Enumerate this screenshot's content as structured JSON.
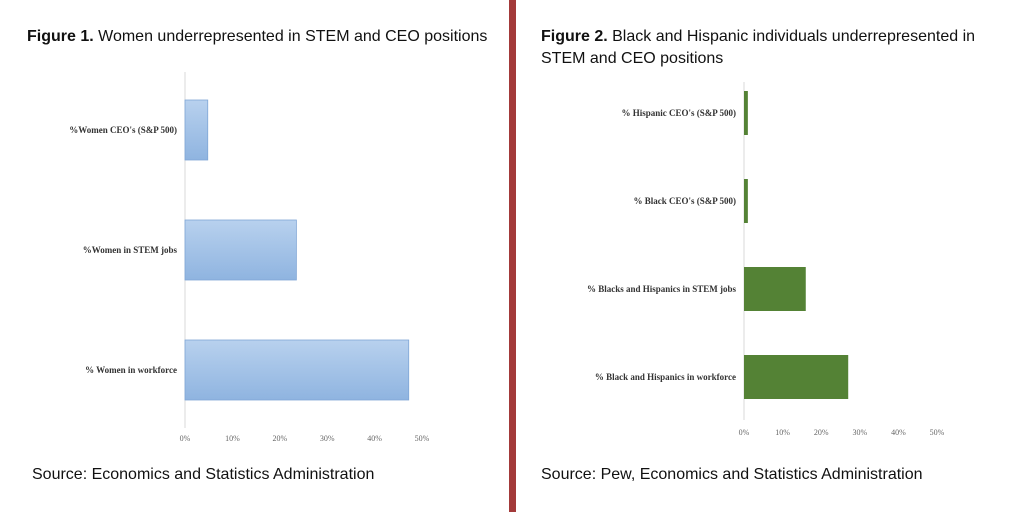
{
  "figure1": {
    "caption_bold": "Figure 1.",
    "caption_rest": " Women underrepresented in STEM and CEO positions",
    "source": "Source: Economics and Statistics Administration"
  },
  "figure2": {
    "caption_bold": "Figure 2.",
    "caption_rest": " Black and Hispanic individuals underrepresented in STEM and CEO positions",
    "source": "Source: Pew, Economics and Statistics Administration"
  },
  "chart_data": [
    {
      "type": "bar",
      "orientation": "horizontal",
      "categories": [
        "%Women CEO's (S&P 500)",
        "%Women in STEM jobs",
        "% Women in workforce"
      ],
      "values": [
        4.8,
        23.5,
        47.2
      ],
      "xlim": [
        0,
        50
      ],
      "ticks": [
        "0%",
        "10%",
        "20%",
        "30%",
        "40%",
        "50%"
      ],
      "color": "#9dbfe6",
      "grid": false
    },
    {
      "type": "bar",
      "orientation": "horizontal",
      "categories": [
        "% Hispanic CEO's (S&P 500)",
        "% Black CEO's (S&P 500)",
        "% Blacks and Hispanics in STEM jobs",
        "% Black and Hispanics in workforce"
      ],
      "values": [
        1.0,
        1.0,
        16.0,
        27.0
      ],
      "xlim": [
        0,
        50
      ],
      "ticks": [
        "0%",
        "10%",
        "20%",
        "30%",
        "40%",
        "50%"
      ],
      "color": "#548235",
      "grid": false
    }
  ]
}
